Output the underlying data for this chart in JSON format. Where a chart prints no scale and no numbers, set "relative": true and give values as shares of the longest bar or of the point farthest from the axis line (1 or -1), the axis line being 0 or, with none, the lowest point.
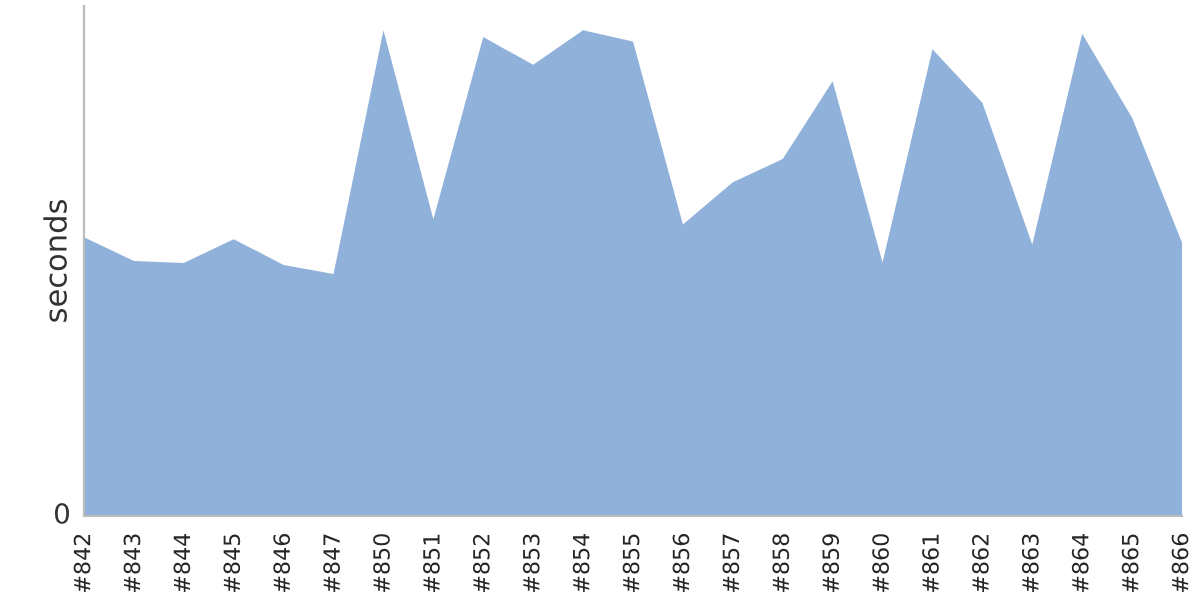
{
  "chart_data": {
    "type": "area",
    "relative": true,
    "ylabel": "seconds",
    "annotations": [
      "0"
    ],
    "categories": [
      "#842",
      "#843",
      "#844",
      "#845",
      "#846",
      "#847",
      "#850",
      "#851",
      "#852",
      "#853",
      "#854",
      "#855",
      "#856",
      "#857",
      "#858",
      "#859",
      "#860",
      "#861",
      "#862",
      "#863",
      "#864",
      "#865",
      "#866"
    ],
    "series": [
      {
        "color": "#8fb1da",
        "values": [
          0.574,
          0.525,
          0.521,
          0.57,
          0.517,
          0.498,
          1.0,
          0.611,
          0.986,
          0.929,
          1.0,
          0.977,
          0.6,
          0.687,
          0.735,
          0.895,
          0.522,
          0.961,
          0.851,
          0.559,
          0.993,
          0.82,
          0.563
        ]
      }
    ],
    "grid": false,
    "legend": false
  }
}
